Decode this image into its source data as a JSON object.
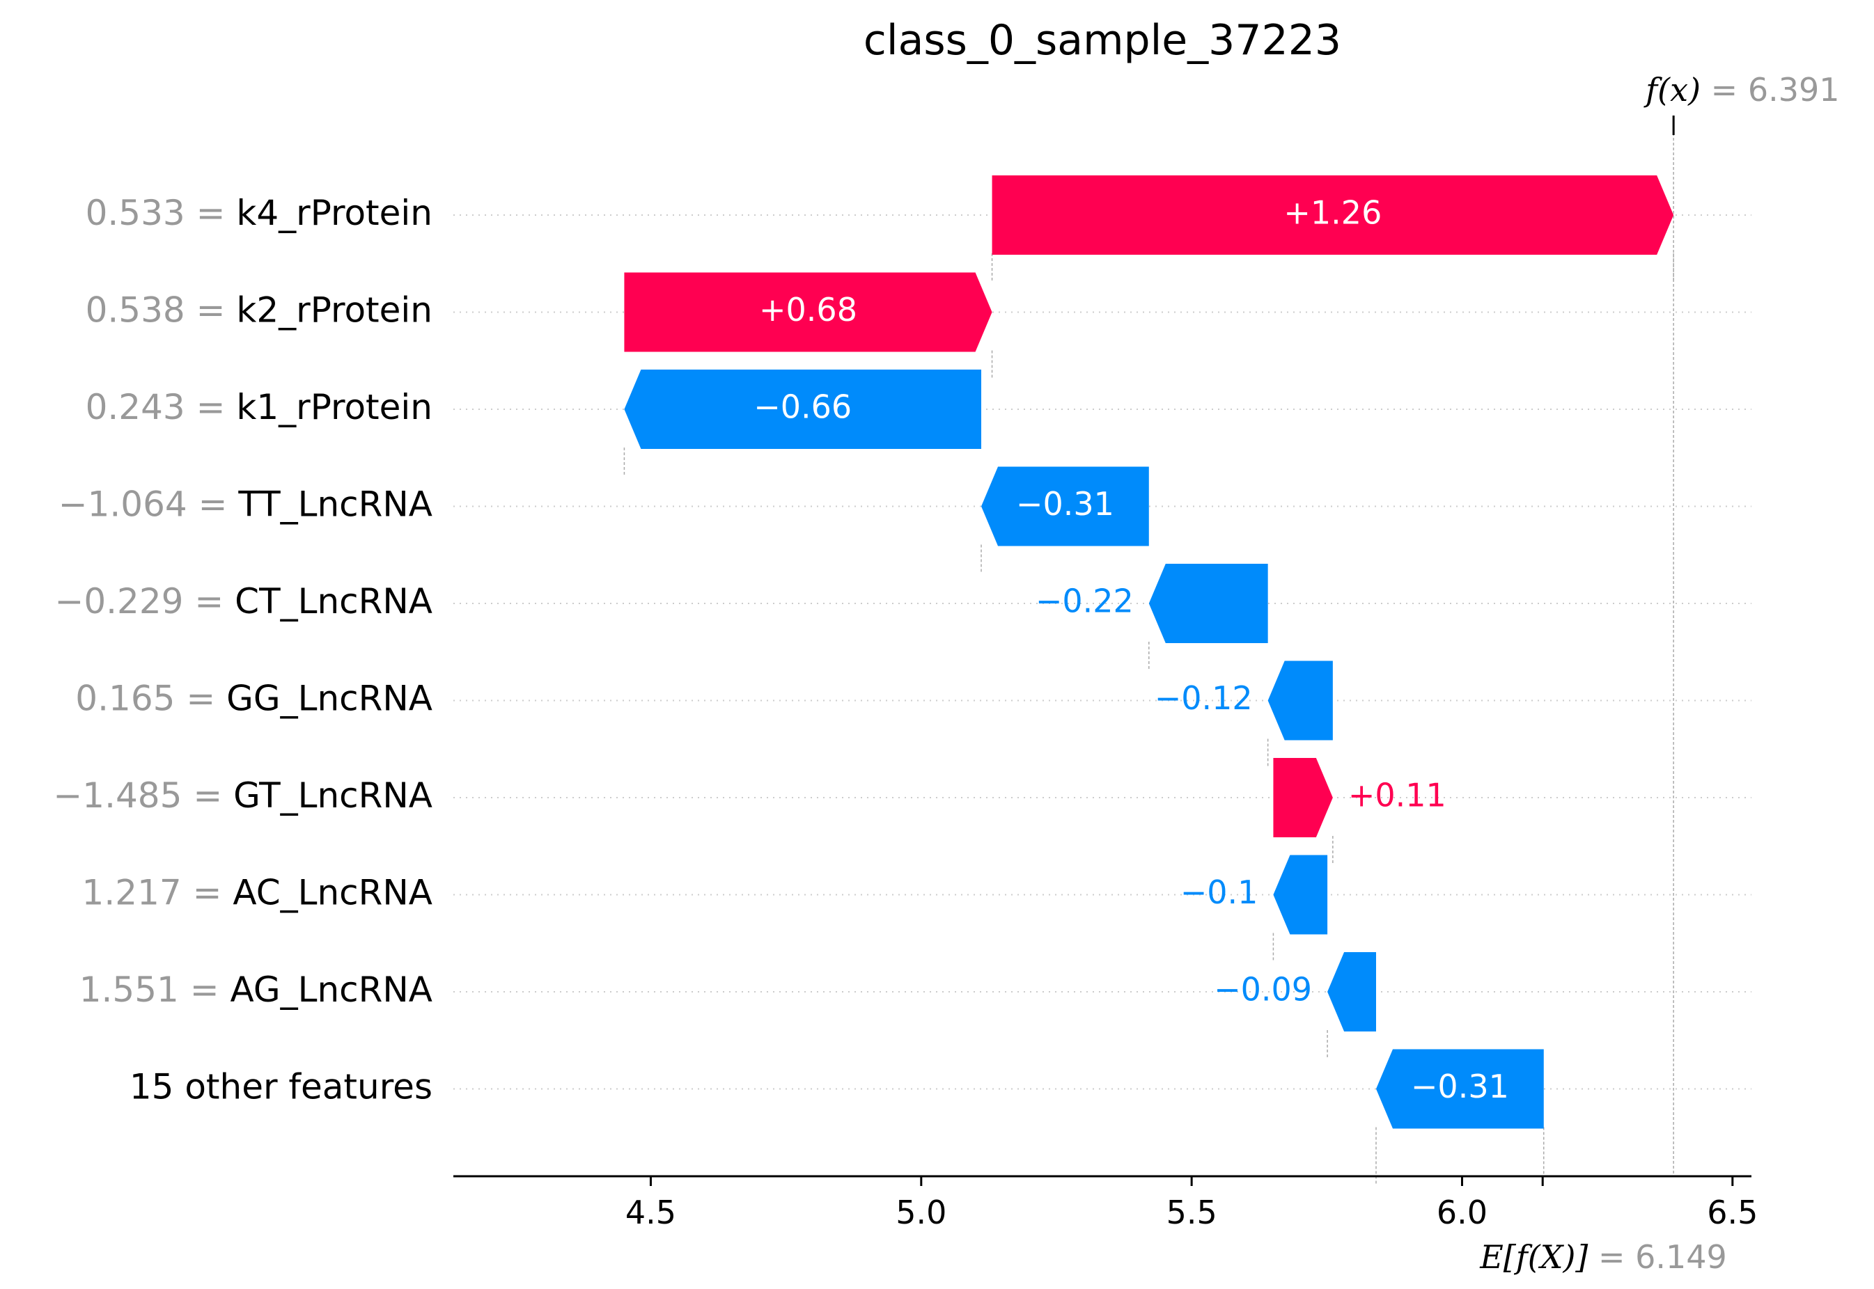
{
  "chart_data": {
    "type": "waterfall",
    "title": "class_0_sample_37223",
    "base_value": 6.149,
    "base_value_text": "6.149",
    "base_label": "E[f(X)]",
    "final_value": 6.391,
    "final_value_text": "6.391",
    "final_label": "f(x)",
    "xlim": [
      4.135,
      6.535
    ],
    "xticks": [
      {
        "value": 4.5,
        "label": "4.5"
      },
      {
        "value": 5.0,
        "label": "5.0"
      },
      {
        "value": 5.5,
        "label": "5.5"
      },
      {
        "value": 6.0,
        "label": "6.0"
      },
      {
        "value": 6.5,
        "label": "6.5"
      }
    ],
    "features": [
      {
        "name": "k4_rProtein",
        "value_text": "0.533",
        "contribution": 1.26,
        "label": "+1.26",
        "start": 5.131,
        "end": 6.391
      },
      {
        "name": "k2_rProtein",
        "value_text": "0.538",
        "contribution": 0.68,
        "label": "+0.68",
        "start": 4.451,
        "end": 5.131
      },
      {
        "name": "k1_rProtein",
        "value_text": "0.243",
        "contribution": -0.66,
        "label": "−0.66",
        "start": 5.111,
        "end": 4.451
      },
      {
        "name": "TT_LncRNA",
        "value_text": "−1.064",
        "contribution": -0.31,
        "label": "−0.31",
        "start": 5.421,
        "end": 5.111
      },
      {
        "name": "CT_LncRNA",
        "value_text": "−0.229",
        "contribution": -0.22,
        "label": "−0.22",
        "start": 5.641,
        "end": 5.421
      },
      {
        "name": "GG_LncRNA",
        "value_text": "0.165",
        "contribution": -0.12,
        "label": "−0.12",
        "start": 5.761,
        "end": 5.641
      },
      {
        "name": "GT_LncRNA",
        "value_text": "−1.485",
        "contribution": 0.11,
        "label": "+0.11",
        "start": 5.651,
        "end": 5.761
      },
      {
        "name": "AC_LncRNA",
        "value_text": "1.217",
        "contribution": -0.1,
        "label": "−0.1",
        "start": 5.751,
        "end": 5.651
      },
      {
        "name": "AG_LncRNA",
        "value_text": "1.551",
        "contribution": -0.09,
        "label": "−0.09",
        "start": 5.841,
        "end": 5.751
      },
      {
        "name": "15 other features",
        "value_text": "",
        "contribution": -0.31,
        "label": "−0.31",
        "start": 6.151,
        "end": 5.841
      }
    ],
    "colors": {
      "positive": "#ff0051",
      "negative": "#008bfb",
      "value_gray": "#999999",
      "grid": "#cccccc"
    }
  }
}
